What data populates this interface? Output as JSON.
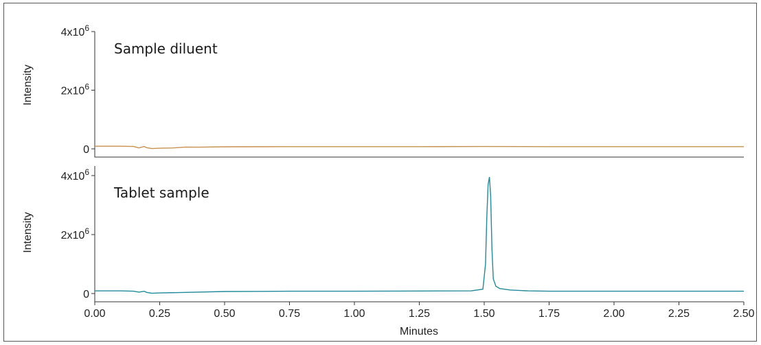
{
  "chart_data": {
    "type": "line",
    "xlabel": "Minutes",
    "xlim": [
      0.0,
      2.5
    ],
    "x_ticks": [
      0.0,
      0.25,
      0.5,
      0.75,
      1.0,
      1.25,
      1.5,
      1.75,
      2.0,
      2.25,
      2.5
    ],
    "x_tick_labels": [
      "0.00",
      "0.25",
      "0.50",
      "0.75",
      "1.00",
      "1.25",
      "1.50",
      "1.75",
      "2.00",
      "2.25",
      "2.50"
    ],
    "grid": false,
    "panels": [
      {
        "label": "Sample diluent",
        "ylabel": "Intensity",
        "ylim": [
          0,
          4000000
        ],
        "y_ticks": [
          0,
          2000000,
          4000000
        ],
        "y_tick_labels": [
          {
            "base": "0",
            "exp": ""
          },
          {
            "base": "2x10",
            "exp": "6"
          },
          {
            "base": "4x10",
            "exp": "6"
          }
        ],
        "color": "#c8904e",
        "x": [
          0.0,
          0.1,
          0.15,
          0.17,
          0.19,
          0.2,
          0.22,
          0.25,
          0.3,
          0.35,
          0.4,
          0.5,
          0.75,
          1.0,
          1.25,
          1.5,
          1.75,
          2.0,
          2.25,
          2.5
        ],
        "y": [
          90000,
          90000,
          80000,
          30000,
          80000,
          40000,
          10000,
          20000,
          30000,
          60000,
          55000,
          70000,
          75000,
          75000,
          75000,
          80000,
          75000,
          75000,
          75000,
          75000
        ]
      },
      {
        "label": "Tablet sample",
        "ylabel": "Intensity",
        "ylim": [
          0,
          4000000
        ],
        "y_ticks": [
          0,
          2000000,
          4000000
        ],
        "y_tick_labels": [
          {
            "base": "0",
            "exp": ""
          },
          {
            "base": "2x10",
            "exp": "6"
          },
          {
            "base": "4x10",
            "exp": "6"
          }
        ],
        "color": "#1f8a9a",
        "x": [
          0.0,
          0.1,
          0.15,
          0.17,
          0.19,
          0.2,
          0.22,
          0.25,
          0.35,
          0.5,
          0.75,
          1.0,
          1.25,
          1.45,
          1.495,
          1.505,
          1.51,
          1.515,
          1.52,
          1.525,
          1.53,
          1.535,
          1.545,
          1.56,
          1.6,
          1.67,
          1.75,
          2.0,
          2.25,
          2.5
        ],
        "y": [
          90000,
          90000,
          80000,
          50000,
          80000,
          40000,
          10000,
          20000,
          40000,
          70000,
          80000,
          80000,
          85000,
          90000,
          150000,
          1000000,
          2600000,
          3700000,
          3950000,
          3300000,
          1500000,
          500000,
          250000,
          170000,
          120000,
          90000,
          80000,
          80000,
          80000,
          80000
        ]
      }
    ]
  }
}
